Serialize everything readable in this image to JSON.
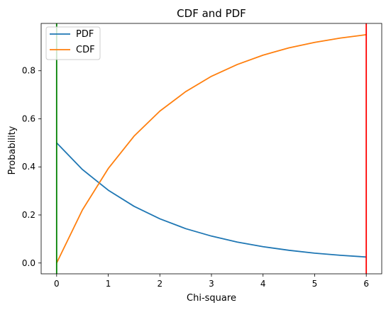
{
  "chart_data": {
    "type": "line",
    "title": "CDF and PDF",
    "xlabel": "Chi-square",
    "ylabel": "Probability",
    "xlim": [
      -0.3,
      6.3
    ],
    "ylim": [
      -0.045,
      0.997
    ],
    "xticks": [
      0,
      1,
      2,
      3,
      4,
      5,
      6
    ],
    "xtick_labels": [
      "0",
      "1",
      "2",
      "3",
      "4",
      "5",
      "6"
    ],
    "yticks": [
      0.0,
      0.2,
      0.4,
      0.6,
      0.8
    ],
    "ytick_labels": [
      "0.0",
      "0.2",
      "0.4",
      "0.6",
      "0.8"
    ],
    "grid": false,
    "legend_position": "top-left",
    "series": [
      {
        "name": "PDF",
        "color": "#1f77b4",
        "x": [
          0,
          0.5,
          1,
          1.5,
          2,
          2.5,
          3,
          3.5,
          4,
          4.5,
          5,
          5.5,
          6
        ],
        "values": [
          0.5,
          0.389,
          0.303,
          0.236,
          0.184,
          0.143,
          0.112,
          0.087,
          0.068,
          0.053,
          0.041,
          0.032,
          0.025
        ]
      },
      {
        "name": "CDF",
        "color": "#ff7f0e",
        "x": [
          0,
          0.5,
          1,
          1.5,
          2,
          2.5,
          3,
          3.5,
          4,
          4.5,
          5,
          5.5,
          6
        ],
        "values": [
          0.0,
          0.221,
          0.393,
          0.528,
          0.632,
          0.713,
          0.777,
          0.826,
          0.865,
          0.895,
          0.918,
          0.936,
          0.95
        ]
      }
    ],
    "vlines": [
      {
        "x": 0,
        "color": "#008000"
      },
      {
        "x": 6,
        "color": "#ff0000"
      }
    ]
  }
}
